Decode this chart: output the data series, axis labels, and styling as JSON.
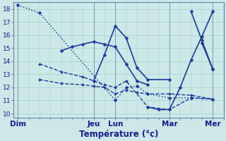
{
  "bg_color": "#cce8e8",
  "line_color": "#1a3a9c",
  "grid_color": "#aacccc",
  "spine_color": "#6688aa",
  "text_color": "#1a1a8c",
  "ylim": [
    9.7,
    18.5
  ],
  "yticks": [
    10,
    11,
    12,
    13,
    14,
    15,
    16,
    17,
    18
  ],
  "xlim": [
    -0.2,
    9.5
  ],
  "xtick_positions": [
    0,
    3.5,
    4.5,
    7,
    9
  ],
  "xtick_labels": [
    "Dim",
    "Jeu",
    "Lun",
    "Mar",
    "Mer"
  ],
  "xlabel": "Température (°c)",
  "lines": [
    {
      "x": [
        0,
        1,
        4.5,
        5,
        5.5,
        6,
        7,
        8,
        9
      ],
      "y": [
        18.3,
        17.7,
        11.0,
        12.0,
        12.1,
        11.5,
        11.2,
        11.2,
        11.1
      ],
      "ls": "dotted",
      "lw": 1.1,
      "ms": 2.5
    },
    {
      "x": [
        1,
        2,
        3,
        3.5,
        4,
        4.5,
        5,
        6,
        7,
        8,
        9
      ],
      "y": [
        13.8,
        13.2,
        12.8,
        12.5,
        12.2,
        12.0,
        12.5,
        10.5,
        10.3,
        11.2,
        11.1
      ],
      "ls": "dashed",
      "lw": 1.0,
      "ms": 2.0
    },
    {
      "x": [
        1,
        2,
        3,
        3.5,
        4,
        4.5,
        5,
        5.5,
        6,
        7,
        8,
        9
      ],
      "y": [
        12.6,
        12.3,
        12.2,
        12.1,
        12.0,
        11.5,
        11.8,
        11.6,
        11.5,
        11.5,
        11.4,
        11.1
      ],
      "ls": "dashed",
      "lw": 1.0,
      "ms": 2.0
    },
    {
      "x": [
        2,
        2.5,
        3,
        3.5,
        4,
        4.5,
        5,
        5.5,
        6
      ],
      "y": [
        14.8,
        15.1,
        15.3,
        15.5,
        15.3,
        15.1,
        13.8,
        12.5,
        12.2
      ],
      "ls": "solid",
      "lw": 1.2,
      "ms": 2.5
    },
    {
      "x": [
        3.5,
        4,
        4.5,
        5,
        5.5,
        6,
        7
      ],
      "y": [
        12.5,
        14.5,
        16.7,
        15.8,
        13.5,
        12.6,
        12.6
      ],
      "ls": "solid",
      "lw": 1.2,
      "ms": 2.5
    },
    {
      "x": [
        6,
        6.5,
        7,
        7.5,
        8,
        8.5,
        9
      ],
      "y": [
        10.5,
        10.3,
        10.3,
        12.0,
        14.1,
        15.9,
        17.8
      ],
      "ls": "solid",
      "lw": 1.2,
      "ms": 2.5
    },
    {
      "x": [
        8,
        8.5,
        9
      ],
      "y": [
        17.8,
        15.6,
        13.4
      ],
      "ls": "solid",
      "lw": 1.2,
      "ms": 2.5
    },
    {
      "x": [
        8.5,
        9
      ],
      "y": [
        15.4,
        13.4
      ],
      "ls": "solid",
      "lw": 1.2,
      "ms": 2.5
    }
  ]
}
